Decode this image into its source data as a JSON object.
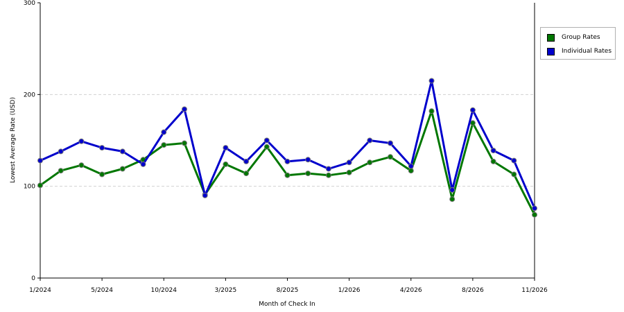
{
  "chart_data": {
    "type": "line",
    "xlabel": "Month of Check In",
    "ylabel": "Lowest Average Rate (USD)",
    "ylim": [
      0,
      300
    ],
    "yticks": [
      0,
      100,
      200,
      300
    ],
    "grid": "dashed horizontal",
    "legend_position": "top-right",
    "x_tick_labels": [
      {
        "index": 0,
        "label": "1/2024"
      },
      {
        "index": 3,
        "label": "5/2024"
      },
      {
        "index": 6,
        "label": "10/2024"
      },
      {
        "index": 9,
        "label": "3/2025"
      },
      {
        "index": 12,
        "label": "8/2025"
      },
      {
        "index": 15,
        "label": "1/2026"
      },
      {
        "index": 18,
        "label": "4/2026"
      },
      {
        "index": 21,
        "label": "8/2026"
      },
      {
        "index": 24,
        "label": "11/2026"
      }
    ],
    "point_count": 25,
    "series": [
      {
        "name": "Group Rates",
        "color": "#007700",
        "values": [
          101,
          117,
          123,
          113,
          119,
          129,
          145,
          147,
          91,
          124,
          114,
          143,
          112,
          114,
          112,
          115,
          126,
          132,
          117,
          182,
          86,
          169,
          127,
          113,
          69
        ]
      },
      {
        "name": "Individual Rates",
        "color": "#0000cc",
        "values": [
          128,
          138,
          149,
          142,
          138,
          124,
          159,
          184,
          90,
          142,
          127,
          150,
          127,
          129,
          119,
          126,
          150,
          147,
          122,
          215,
          96,
          183,
          139,
          128,
          76
        ]
      }
    ]
  }
}
